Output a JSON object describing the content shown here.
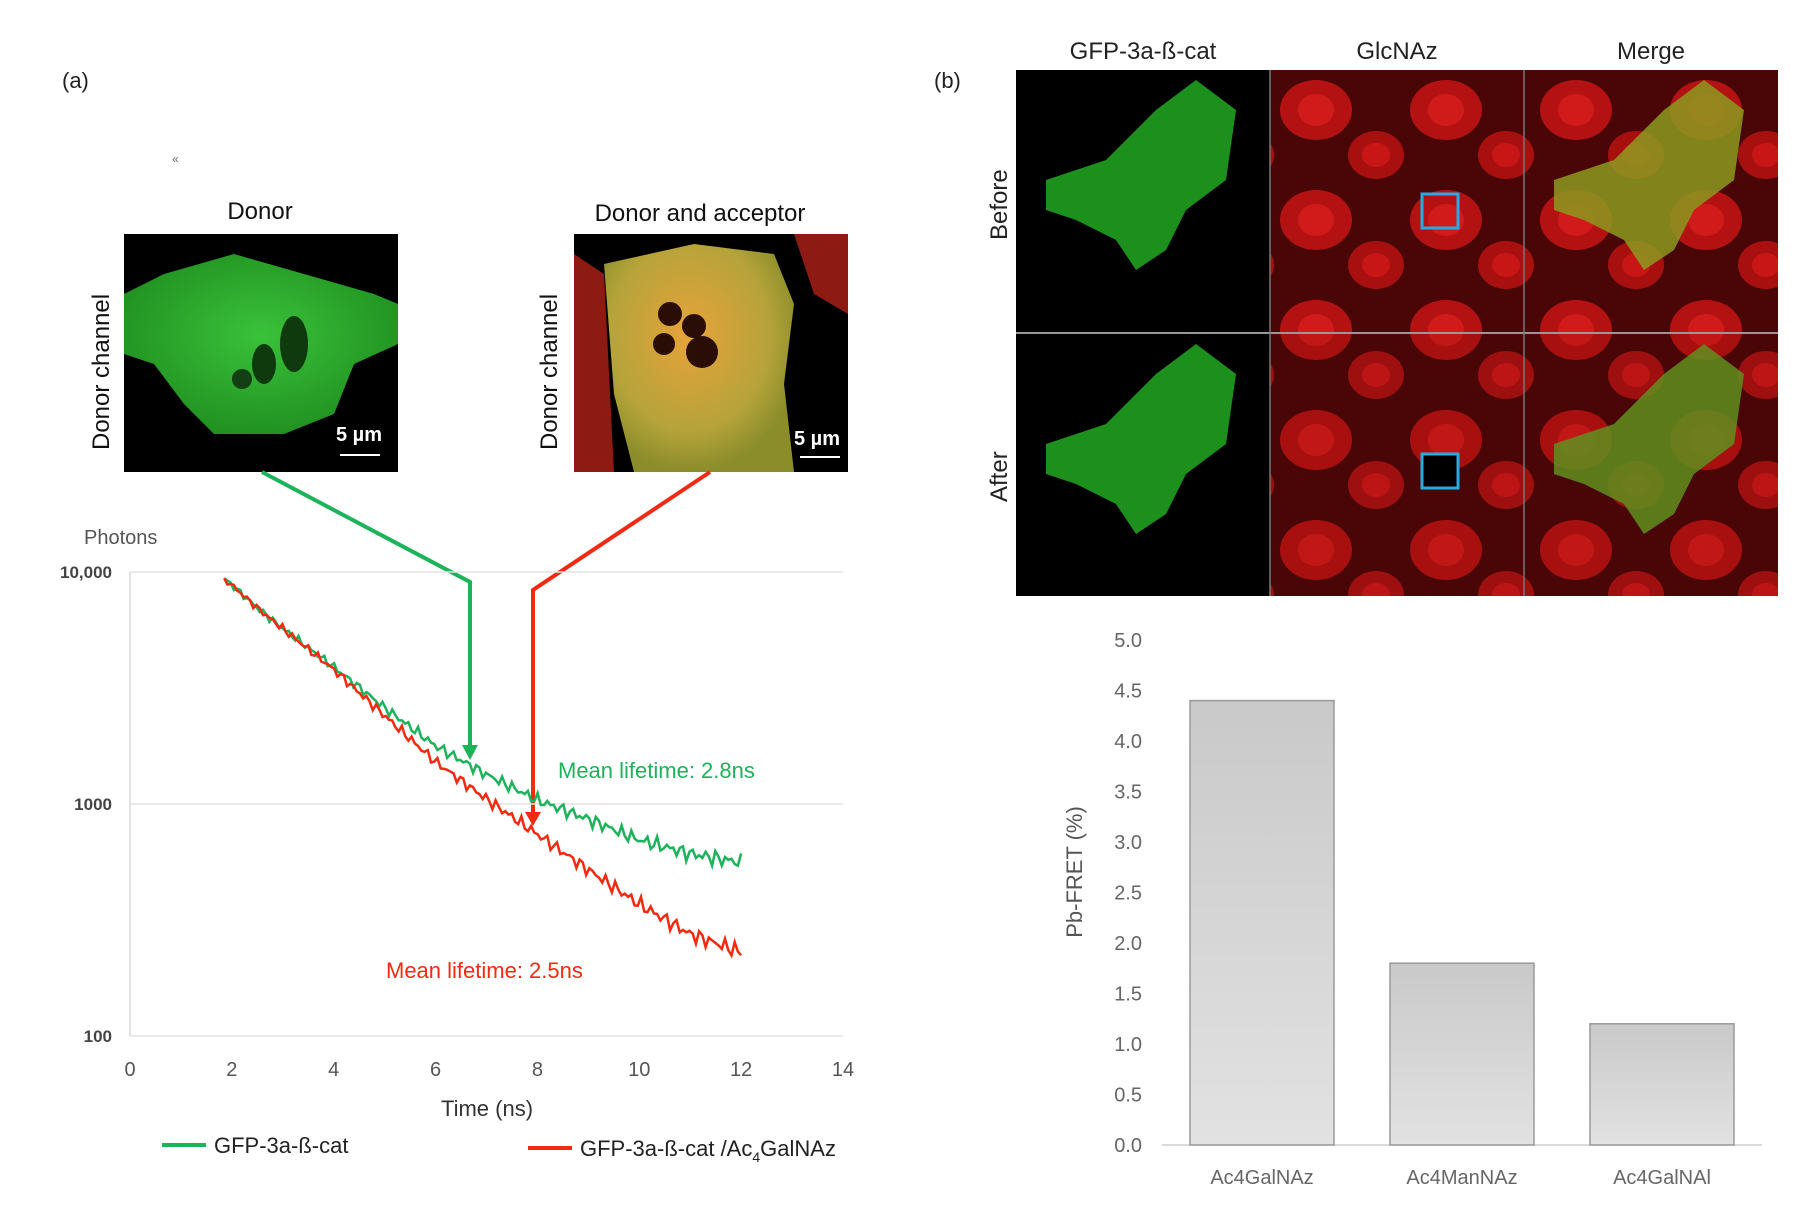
{
  "panel_a": {
    "label": "(a)",
    "stray_mark": "«",
    "donor_title": "Donor",
    "donor_acceptor_title": "Donor and acceptor",
    "channel_label": "Donor channel",
    "scale_label": "5 µm"
  },
  "panel_b": {
    "label": "(b)",
    "columns": [
      "GFP-3a-ß-cat",
      "GlcNAz",
      "Merge"
    ],
    "rows": [
      "Before",
      "After"
    ]
  },
  "colors": {
    "green": "#1db35a",
    "red": "#f22a12",
    "bar_fill_top": "#c9c9c9",
    "bar_fill_bottom": "#dedede",
    "roi": "#27a9e1"
  },
  "chart_data": [
    {
      "type": "line",
      "scale": "log",
      "title": "",
      "ylabel": "Photons",
      "xlabel": "Time (ns)",
      "xlim": [
        0,
        14
      ],
      "ylim": [
        100,
        10000
      ],
      "x_ticks": [
        "0",
        "2",
        "4",
        "6",
        "8",
        "10",
        "12",
        "14"
      ],
      "y_ticks": [
        "10,000",
        "1000",
        "100"
      ],
      "series": [
        {
          "name": "GFP-3a-ß-cat",
          "color": "#1db35a",
          "x": [
            1.85,
            2.5,
            3.0,
            4.0,
            5.0,
            6.0,
            7.0,
            8.0,
            9.0,
            10.0,
            11.0,
            12.0
          ],
          "values": [
            9400,
            7000,
            5700,
            3900,
            2600,
            1780,
            1340,
            1040,
            860,
            700,
            610,
            560
          ],
          "annotation": "Mean lifetime: 2.8ns"
        },
        {
          "name": "GFP-3a-ß-cat /Ac4GalNAz",
          "legend_main": "GFP-3a-ß-cat /Ac",
          "legend_sub": "4",
          "legend_tail": "GalNAz",
          "color": "#f22a12",
          "x": [
            1.85,
            2.5,
            3.0,
            4.0,
            5.0,
            6.0,
            7.0,
            8.0,
            9.0,
            10.0,
            11.0,
            12.0
          ],
          "values": [
            9400,
            7000,
            5700,
            3800,
            2400,
            1520,
            1050,
            740,
            520,
            370,
            275,
            230
          ],
          "annotation": "Mean lifetime: 2.5ns"
        }
      ]
    },
    {
      "type": "bar",
      "title": "",
      "xlabel": "",
      "ylabel": "Pb-FRET (%)",
      "ylim": [
        0,
        5
      ],
      "y_ticks": [
        "0.0",
        "0.5",
        "1.0",
        "1.5",
        "2.0",
        "2.5",
        "3.0",
        "3.5",
        "4.0",
        "4.5",
        "5.0"
      ],
      "categories": [
        "Ac4GalNAz",
        "Ac4ManNAz",
        "Ac4GalNAl"
      ],
      "values": [
        4.4,
        1.8,
        1.2
      ]
    }
  ]
}
